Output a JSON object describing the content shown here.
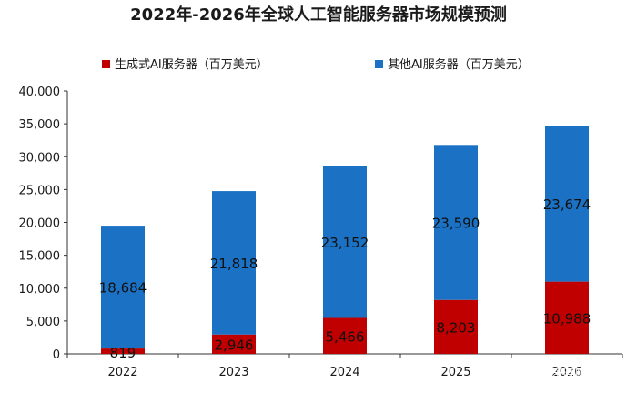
{
  "chart_data": {
    "type": "bar",
    "stacked": true,
    "title": "2022年-2026年全球人工智能服务器市场规模预测",
    "categories": [
      "2022",
      "2023",
      "2024",
      "2025",
      "2026"
    ],
    "series": [
      {
        "name": "生成式AI服务器（百万美元）",
        "color": "#c00000",
        "values": [
          819,
          2946,
          5466,
          8203,
          10988
        ],
        "labels": [
          "819",
          "2,946",
          "5,466",
          "8,203",
          "10,988"
        ]
      },
      {
        "name": "其他AI服务器（百万美元）",
        "color": "#1b72c4",
        "values": [
          18684,
          21818,
          23152,
          23590,
          23674
        ],
        "labels": [
          "18,684",
          "21,818",
          "23,152",
          "23,590",
          "23,674"
        ]
      }
    ],
    "ylim": [
      0,
      40000
    ],
    "yticks": [
      0,
      5000,
      10000,
      15000,
      20000,
      25000,
      30000,
      35000,
      40000
    ],
    "ytick_labels": [
      "0",
      "5,000",
      "10,000",
      "15,000",
      "20,000",
      "25,000",
      "30,000",
      "35,000",
      "40,000"
    ],
    "xlabel": "",
    "ylabel": "",
    "legend_position": "top",
    "grid": false
  },
  "watermark": {
    "text": "乐晓财"
  }
}
